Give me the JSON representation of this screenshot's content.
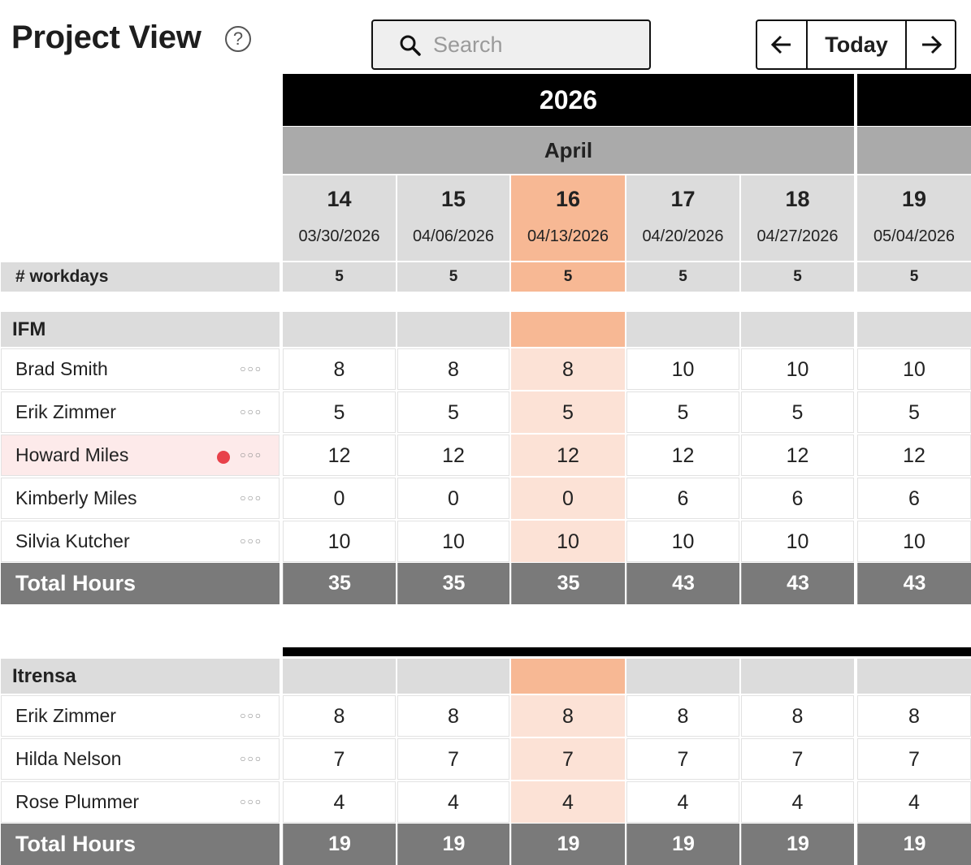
{
  "header": {
    "title": "Project View",
    "help_icon": "?",
    "search_placeholder": "Search",
    "today_label": "Today"
  },
  "timeline": {
    "year": "2026",
    "month": "April",
    "weeks": [
      {
        "num": "14",
        "date": "03/30/2026",
        "current": false
      },
      {
        "num": "15",
        "date": "04/06/2026",
        "current": false
      },
      {
        "num": "16",
        "date": "04/13/2026",
        "current": true
      },
      {
        "num": "17",
        "date": "04/20/2026",
        "current": false
      },
      {
        "num": "18",
        "date": "04/27/2026",
        "current": false
      },
      {
        "num": "19",
        "date": "05/04/2026",
        "current": false
      }
    ],
    "workdays_label": "# workdays",
    "workdays": [
      "5",
      "5",
      "5",
      "5",
      "5",
      "5"
    ]
  },
  "groups": [
    {
      "name": "IFM",
      "rows": [
        {
          "name": "Brad Smith",
          "flag": false,
          "values": [
            "8",
            "8",
            "8",
            "10",
            "10",
            "10"
          ]
        },
        {
          "name": "Erik Zimmer",
          "flag": false,
          "values": [
            "5",
            "5",
            "5",
            "5",
            "5",
            "5"
          ]
        },
        {
          "name": "Howard Miles",
          "flag": true,
          "values": [
            "12",
            "12",
            "12",
            "12",
            "12",
            "12"
          ]
        },
        {
          "name": "Kimberly Miles",
          "flag": false,
          "values": [
            "0",
            "0",
            "0",
            "6",
            "6",
            "6"
          ]
        },
        {
          "name": "Silvia Kutcher",
          "flag": false,
          "values": [
            "10",
            "10",
            "10",
            "10",
            "10",
            "10"
          ]
        }
      ],
      "total_label": "Total Hours",
      "totals": [
        "35",
        "35",
        "35",
        "43",
        "43",
        "43"
      ]
    },
    {
      "name": "Itrensa",
      "rows": [
        {
          "name": "Erik Zimmer",
          "flag": false,
          "values": [
            "8",
            "8",
            "8",
            "8",
            "8",
            "8"
          ]
        },
        {
          "name": "Hilda Nelson",
          "flag": false,
          "values": [
            "7",
            "7",
            "7",
            "7",
            "7",
            "7"
          ]
        },
        {
          "name": "Rose Plummer",
          "flag": false,
          "values": [
            "4",
            "4",
            "4",
            "4",
            "4",
            "4"
          ]
        }
      ],
      "total_label": "Total Hours",
      "totals": [
        "19",
        "19",
        "19",
        "19",
        "19",
        "19"
      ]
    }
  ],
  "colors": {
    "current_week_header": "#f7b894",
    "current_week_cell": "#fce2d6",
    "flag_dot": "#e8414a",
    "total_row": "#7a7a7a"
  },
  "icons": {
    "search": "search-icon",
    "prev": "arrow-left-icon",
    "next": "arrow-right-icon",
    "row_menu": "more-dots-icon",
    "flag": "status-dot-icon"
  }
}
